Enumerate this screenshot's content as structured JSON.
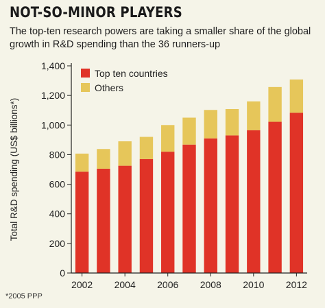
{
  "header": {
    "title": "NOT-SO-MINOR PLAYERS",
    "subtitle": "The top-ten research powers are taking a smaller share of the global growth in R&D spending than the 36 runners-up"
  },
  "footnote": "*2005 PPP",
  "colors": {
    "top_ten": "#e03327",
    "others": "#e6c65a",
    "background": "#f5f4e8"
  },
  "chart_data": {
    "type": "bar",
    "stacked": true,
    "title": "NOT-SO-MINOR PLAYERS",
    "ylabel": "Total R&D spending (US$ billions*)",
    "xlabel": "",
    "ylim": [
      0,
      1400
    ],
    "yticks": [
      0,
      200,
      400,
      600,
      800,
      1000,
      1200,
      1400
    ],
    "categories": [
      "2002",
      "2003",
      "2004",
      "2005",
      "2006",
      "2007",
      "2008",
      "2009",
      "2010",
      "2011",
      "2012"
    ],
    "xtick_labels": [
      "2002",
      "2004",
      "2006",
      "2008",
      "2010",
      "2012"
    ],
    "legend_position": "top-left",
    "series": [
      {
        "name": "Top ten countries",
        "color": "#e03327",
        "values": [
          685,
          705,
          725,
          770,
          820,
          868,
          910,
          930,
          965,
          1022,
          1083
        ]
      },
      {
        "name": "Others",
        "color": "#e6c65a",
        "values": [
          122,
          133,
          165,
          150,
          180,
          182,
          192,
          178,
          195,
          235,
          225
        ]
      }
    ]
  }
}
